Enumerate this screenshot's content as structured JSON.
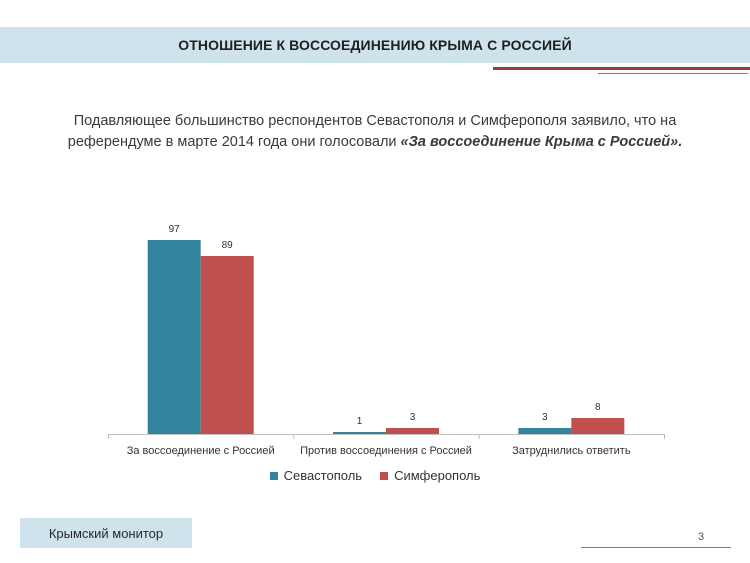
{
  "header": {
    "title": "ОТНОШЕНИЕ К ВОССОЕДИНЕНИЮ КРЫМА С РОССИЕЙ"
  },
  "intro": {
    "text": "Подавляющее большинство респондентов Севастополя и Симферополя заявило, что на референдуме в марте 2014 года они голосовали ",
    "emphasis": "«За воссоединение Крыма с Россией».",
    "tail": ""
  },
  "colors": {
    "sevastopol": "#31849b",
    "simferopol": "#c0504d",
    "accent": "#cfe3ec"
  },
  "chart_data": {
    "type": "bar",
    "categories": [
      "За воссоединение с Россией",
      "Против воссоединения с Россией",
      "Затруднились ответить"
    ],
    "series": [
      {
        "name": "Севастополь",
        "values": [
          97,
          1,
          3
        ]
      },
      {
        "name": "Симферополь",
        "values": [
          89,
          3,
          8
        ]
      }
    ],
    "ylim": [
      0,
      100
    ],
    "grid": false,
    "legend": "bottom",
    "data_labels": true
  },
  "legend": {
    "items": [
      "Севастополь",
      "Симферополь"
    ]
  },
  "footer": {
    "label": "Крымский монитор",
    "page_number": "3"
  }
}
